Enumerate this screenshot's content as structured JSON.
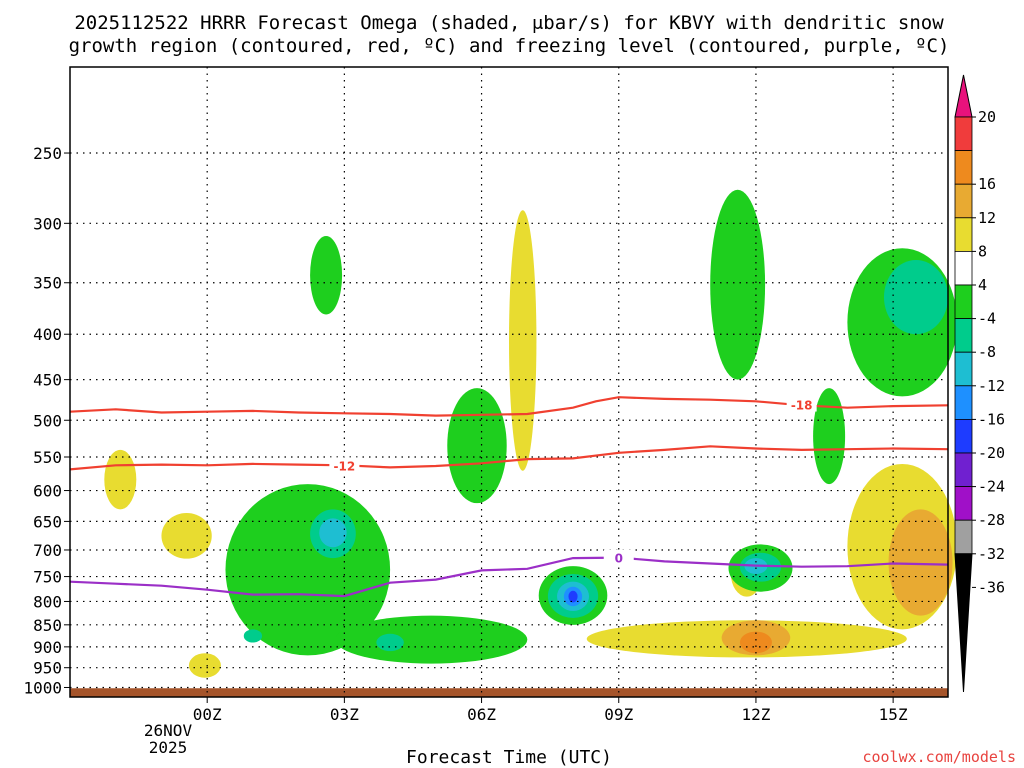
{
  "chart_data": {
    "type": "contour",
    "title_line1": "2025112522 HRRR Forecast Omega (shaded, μbar/s) for KBVY with dendritic snow",
    "title_line2": "growth region (contoured, red, ºC) and freezing level (contoured, purple, ºC)",
    "xlabel": "Forecast Time (UTC)",
    "x_ticks": [
      {
        "t": 2,
        "label": "00Z"
      },
      {
        "t": 5,
        "label": "03Z"
      },
      {
        "t": 8,
        "label": "06Z"
      },
      {
        "t": 11,
        "label": "09Z"
      },
      {
        "t": 14,
        "label": "12Z"
      },
      {
        "t": 17,
        "label": "15Z"
      }
    ],
    "x_date_line1": "26NOV",
    "x_date_line2": "2025",
    "xlim": [
      -1,
      18.2
    ],
    "y_ticks": [
      250,
      300,
      350,
      400,
      450,
      500,
      550,
      600,
      650,
      700,
      750,
      800,
      850,
      900,
      950,
      1000
    ],
    "y_tick_labels": [
      "250",
      "300",
      "350",
      "400",
      "450",
      "500",
      "550",
      "600",
      "650",
      "700",
      "750",
      "800",
      "850",
      "900",
      "950",
      "1000"
    ],
    "ylim": [
      1025,
      200
    ],
    "yscale": "log",
    "colorbar": {
      "labels": [
        "20",
        "16",
        "12",
        "8",
        "4",
        "-4",
        "-8",
        "-12",
        "-16",
        "-20",
        "-24",
        "-28",
        "-32",
        "-36"
      ],
      "bins": [
        {
          "lo": 16,
          "hi": 20,
          "color": "#f03c3c"
        },
        {
          "lo": 12,
          "hi": 16,
          "color": "#ee8a1e"
        },
        {
          "lo": 8,
          "hi": 12,
          "color": "#e8aa32"
        },
        {
          "lo": 4,
          "hi": 8,
          "color": "#e8dc30"
        },
        {
          "lo": -4,
          "hi": 4,
          "color": "#ffffff"
        },
        {
          "lo": -8,
          "hi": -4,
          "color": "#1ecf1e"
        },
        {
          "lo": -12,
          "hi": -8,
          "color": "#00cc8c"
        },
        {
          "lo": -16,
          "hi": -12,
          "color": "#1ebed2"
        },
        {
          "lo": -20,
          "hi": -16,
          "color": "#1e90ff"
        },
        {
          "lo": -24,
          "hi": -20,
          "color": "#1e3cff"
        },
        {
          "lo": -28,
          "hi": -24,
          "color": "#7020d0"
        },
        {
          "lo": -32,
          "hi": -28,
          "color": "#a010c8"
        },
        {
          "lo": -36,
          "hi": -32,
          "color": "#a0a0a0"
        }
      ],
      "over_color": "#e8127c",
      "under_color": "#000000"
    },
    "contours": [
      {
        "name": "dgz-minus-18",
        "label": "-18",
        "color": "#f04030",
        "points": [
          [
            -1,
            489
          ],
          [
            0,
            486
          ],
          [
            1,
            490
          ],
          [
            2,
            489
          ],
          [
            3,
            488
          ],
          [
            4,
            490
          ],
          [
            5,
            491
          ],
          [
            6,
            492
          ],
          [
            7,
            494
          ],
          [
            8,
            493
          ],
          [
            9,
            492
          ],
          [
            10,
            484
          ],
          [
            10.5,
            476
          ],
          [
            11,
            471
          ],
          [
            12,
            473
          ],
          [
            13,
            474
          ],
          [
            14,
            476
          ],
          [
            15,
            481
          ],
          [
            16,
            484
          ],
          [
            17,
            482
          ],
          [
            18.2,
            481
          ]
        ],
        "label_at": [
          15,
          480
        ]
      },
      {
        "name": "dgz-minus-12",
        "label": "-12",
        "color": "#f04030",
        "points": [
          [
            -1,
            568
          ],
          [
            0,
            562
          ],
          [
            1,
            561
          ],
          [
            2,
            562
          ],
          [
            3,
            560
          ],
          [
            4,
            561
          ],
          [
            5,
            562
          ],
          [
            6,
            565
          ],
          [
            7,
            563
          ],
          [
            8,
            559
          ],
          [
            9,
            553
          ],
          [
            10,
            552
          ],
          [
            11,
            544
          ],
          [
            12,
            540
          ],
          [
            13,
            535
          ],
          [
            14,
            538
          ],
          [
            15,
            540
          ],
          [
            16,
            539
          ],
          [
            17,
            538
          ],
          [
            18.2,
            539
          ]
        ],
        "label_at": [
          5,
          562
        ]
      },
      {
        "name": "freezing-level-0",
        "label": "0",
        "color": "#9b2fc7",
        "points": [
          [
            -1,
            760
          ],
          [
            0,
            764
          ],
          [
            1,
            768
          ],
          [
            2,
            776
          ],
          [
            3,
            786
          ],
          [
            4,
            785
          ],
          [
            5,
            789
          ],
          [
            6,
            762
          ],
          [
            7,
            756
          ],
          [
            8,
            738
          ],
          [
            9,
            735
          ],
          [
            10,
            715
          ],
          [
            11,
            714
          ],
          [
            12,
            721
          ],
          [
            13,
            725
          ],
          [
            14,
            729
          ],
          [
            15,
            731
          ],
          [
            16,
            730
          ],
          [
            17,
            725
          ],
          [
            18.2,
            727
          ]
        ],
        "label_at": [
          11,
          714
        ]
      }
    ],
    "shaded_regions": [
      {
        "name": "omega-pos4-a",
        "value_bin": "4..8",
        "t": 0.1,
        "p": 585,
        "dt": 0.35,
        "dp_top": 45,
        "dp_bot": 45
      },
      {
        "name": "omega-pos4-b",
        "value_bin": "4..8",
        "t": 1.55,
        "p": 676,
        "dt": 0.55,
        "dp_top": 40,
        "dp_bot": 40
      },
      {
        "name": "omega-pos4-c",
        "value_bin": "4..8",
        "t": 1.95,
        "p": 945,
        "dt": 0.35,
        "dp_top": 30,
        "dp_bot": 30
      },
      {
        "name": "omega-pos4-d",
        "value_bin": "4..8",
        "t": 8.9,
        "p": 430,
        "dt": 0.3,
        "dp_top": 140,
        "dp_bot": 140
      },
      {
        "name": "omega-pos4-e",
        "value_bin": "4..8",
        "t": 13.8,
        "p": 745,
        "dt": 0.35,
        "dp_top": 45,
        "dp_bot": 45
      },
      {
        "name": "omega-pos4-f",
        "value_bin": "4..8",
        "t": 13.8,
        "p": 880,
        "dt": 3.5,
        "dp_top": 40,
        "dp_bot": 45
      },
      {
        "name": "omega-pos4-g",
        "value_bin": "4..8",
        "t": 17.2,
        "p": 700,
        "dt": 1.2,
        "dp_top": 140,
        "dp_bot": 160
      },
      {
        "name": "omega-pos8-a",
        "value_bin": "8..12",
        "t": 14.0,
        "p": 880,
        "dt": 0.75,
        "dp_top": 40,
        "dp_bot": 40
      },
      {
        "name": "omega-pos8-b",
        "value_bin": "8..12",
        "t": 17.6,
        "p": 730,
        "dt": 0.7,
        "dp_top": 100,
        "dp_bot": 100
      },
      {
        "name": "omega-pos12-a",
        "value_bin": "12..16",
        "t": 14.0,
        "p": 890,
        "dt": 0.35,
        "dp_top": 25,
        "dp_bot": 25
      },
      {
        "name": "omega-neg4-a",
        "value_bin": "-8..-4",
        "t": 4.2,
        "p": 720,
        "dt": 1.8,
        "dp_top": 130,
        "dp_bot": 200
      },
      {
        "name": "omega-neg4-b",
        "value_bin": "-8..-4",
        "t": 4.6,
        "p": 340,
        "dt": 0.35,
        "dp_top": 30,
        "dp_bot": 40
      },
      {
        "name": "omega-neg4-c",
        "value_bin": "-8..-4",
        "t": 7.9,
        "p": 540,
        "dt": 0.65,
        "dp_top": 80,
        "dp_bot": 80
      },
      {
        "name": "omega-neg4-d",
        "value_bin": "-8..-4",
        "t": 6.9,
        "p": 880,
        "dt": 2.1,
        "dp_top": 50,
        "dp_bot": 60
      },
      {
        "name": "omega-neg4-e",
        "value_bin": "-8..-4",
        "t": 10.0,
        "p": 790,
        "dt": 0.75,
        "dp_top": 60,
        "dp_bot": 60
      },
      {
        "name": "omega-neg4-f",
        "value_bin": "-8..-4",
        "t": 13.6,
        "p": 350,
        "dt": 0.6,
        "dp_top": 75,
        "dp_bot": 100
      },
      {
        "name": "omega-neg4-g",
        "value_bin": "-8..-4",
        "t": 14.1,
        "p": 730,
        "dt": 0.7,
        "dp_top": 40,
        "dp_bot": 50
      },
      {
        "name": "omega-neg4-h",
        "value_bin": "-8..-4",
        "t": 17.2,
        "p": 390,
        "dt": 1.2,
        "dp_top": 70,
        "dp_bot": 80
      },
      {
        "name": "omega-neg4-i",
        "value_bin": "-8..-4",
        "t": 15.6,
        "p": 520,
        "dt": 0.35,
        "dp_top": 60,
        "dp_bot": 70
      },
      {
        "name": "omega-neg8-a",
        "value_bin": "-12..-8",
        "t": 4.75,
        "p": 670,
        "dt": 0.5,
        "dp_top": 40,
        "dp_bot": 45
      },
      {
        "name": "omega-neg8-b",
        "value_bin": "-12..-8",
        "t": 3.0,
        "p": 875,
        "dt": 0.2,
        "dp_top": 15,
        "dp_bot": 15
      },
      {
        "name": "omega-neg8-c",
        "value_bin": "-12..-8",
        "t": 6.0,
        "p": 890,
        "dt": 0.3,
        "dp_top": 20,
        "dp_bot": 20
      },
      {
        "name": "omega-neg8-d",
        "value_bin": "-12..-8",
        "t": 10.0,
        "p": 790,
        "dt": 0.55,
        "dp_top": 45,
        "dp_bot": 45
      },
      {
        "name": "omega-neg8-e",
        "value_bin": "-12..-8",
        "t": 14.1,
        "p": 730,
        "dt": 0.45,
        "dp_top": 25,
        "dp_bot": 30
      },
      {
        "name": "omega-neg8-f",
        "value_bin": "-12..-8",
        "t": 17.5,
        "p": 365,
        "dt": 0.7,
        "dp_top": 35,
        "dp_bot": 35
      },
      {
        "name": "omega-neg12-a",
        "value_bin": "-16..-12",
        "t": 4.75,
        "p": 670,
        "dt": 0.3,
        "dp_top": 25,
        "dp_bot": 25
      },
      {
        "name": "omega-neg12-b",
        "value_bin": "-16..-12",
        "t": 10.0,
        "p": 790,
        "dt": 0.35,
        "dp_top": 30,
        "dp_bot": 30
      },
      {
        "name": "omega-neg12-c",
        "value_bin": "-16..-12",
        "t": 14.0,
        "p": 730,
        "dt": 0.25,
        "dp_top": 15,
        "dp_bot": 15
      },
      {
        "name": "omega-neg16-a",
        "value_bin": "-20..-16",
        "t": 10.0,
        "p": 790,
        "dt": 0.2,
        "dp_top": 20,
        "dp_bot": 20
      },
      {
        "name": "omega-neg20-a",
        "value_bin": "-24..-20",
        "t": 10.0,
        "p": 790,
        "dt": 0.1,
        "dp_top": 12,
        "dp_bot": 12
      }
    ],
    "surface": {
      "p_top": 1002,
      "p_bottom": 1025,
      "color": "#a5542a"
    }
  },
  "credit": "coolwx.com/models"
}
